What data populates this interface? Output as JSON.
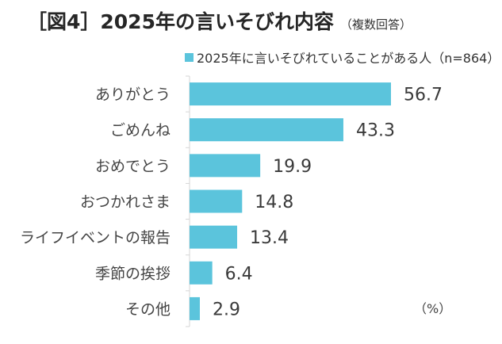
{
  "title": "［図4］2025年の言いそびれ内容",
  "subtitle": "（複数回答）",
  "legend": "2025年に言いそびれていることがある人（n=864）",
  "unit": "（%）",
  "colors": {
    "bar": "#5bc4dc",
    "axis": "#d6d6d6"
  },
  "chart_data": {
    "type": "bar",
    "orientation": "horizontal",
    "title": "［図4］2025年の言いそびれ内容",
    "categories": [
      "ありがとう",
      "ごめんね",
      "おめでとう",
      "おつかれさま",
      "ライフイベントの報告",
      "季節の挨拶",
      "その他"
    ],
    "series": [
      {
        "name": "2025年に言いそびれていることがある人（n=864）",
        "values": [
          56.7,
          43.3,
          19.9,
          14.8,
          13.4,
          6.4,
          2.9
        ]
      }
    ],
    "xlim": [
      0,
      60
    ],
    "grid": false,
    "legend_position": "top"
  }
}
